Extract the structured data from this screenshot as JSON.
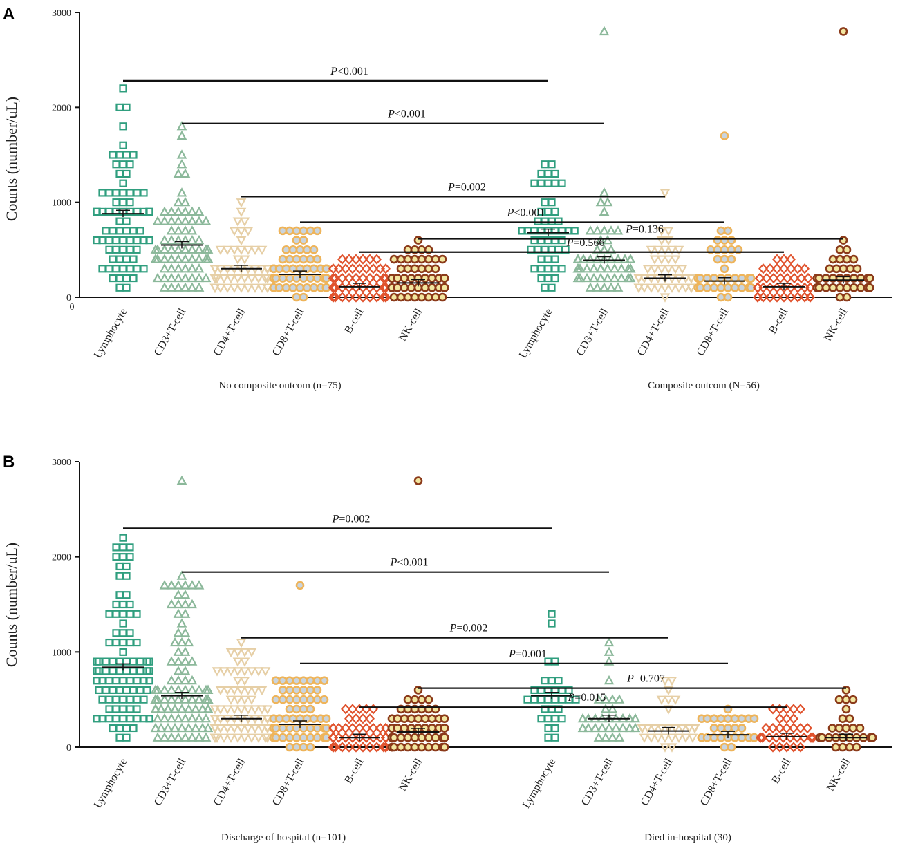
{
  "chart_data": [
    {
      "type": "scatter",
      "panel": "A",
      "ylabel": "Counts (number/uL)",
      "ylim": [
        0,
        3000
      ],
      "yticks": [
        0,
        1000,
        2000,
        3000
      ],
      "origin_label": "0",
      "groups": [
        "No composite outcom (n=75)",
        "Composite outcom (N=56)"
      ],
      "categories": [
        "Lymphocyte",
        "CD3+T-cell",
        "CD4+T-cell",
        "CD8+T-cell",
        "B-cell",
        "NK-cell",
        "Lymphocyte",
        "CD3+T-cell",
        "CD4+T-cell",
        "CD8+T-cell",
        "B-cell",
        "NK-cell"
      ],
      "medians": [
        880,
        550,
        300,
        240,
        110,
        150,
        680,
        390,
        200,
        170,
        110,
        180
      ],
      "ranges": [
        [
          100,
          2200
        ],
        [
          80,
          1780
        ],
        [
          50,
          1000
        ],
        [
          30,
          740
        ],
        [
          10,
          420
        ],
        [
          20,
          550
        ],
        [
          100,
          1400
        ],
        [
          100,
          1100
        ],
        [
          40,
          700
        ],
        [
          20,
          680
        ],
        [
          10,
          440
        ],
        [
          20,
          560
        ]
      ],
      "outliers": [
        [],
        [],
        [],
        [],
        [],
        [],
        [],
        [
          2800
        ],
        [
          1050
        ],
        [
          1700
        ],
        [],
        [
          2800
        ]
      ],
      "counts": [
        75,
        75,
        75,
        75,
        75,
        75,
        56,
        56,
        56,
        56,
        56,
        56
      ],
      "comparisons": [
        {
          "label": "P<0.001",
          "from": 0,
          "to": 6,
          "y": 2280
        },
        {
          "label": "P<0.001",
          "from": 1,
          "to": 7,
          "y": 1830
        },
        {
          "label": "P=0.002",
          "from": 2,
          "to": 8,
          "y": 1060
        },
        {
          "label": "P<0.001",
          "from": 3,
          "to": 9,
          "y": 790
        },
        {
          "label": "P=0.136",
          "from": 5,
          "to": 11,
          "y": 615
        },
        {
          "label": "P=0.566",
          "from": 4,
          "to": 10,
          "y": 475
        }
      ]
    },
    {
      "type": "scatter",
      "panel": "B",
      "ylabel": "Counts (number/uL)",
      "ylim": [
        0,
        3000
      ],
      "yticks": [
        0,
        1000,
        2000,
        3000
      ],
      "origin_label": "",
      "groups": [
        "Discharge of hospital (n=101)",
        "Died in-hospital (30)"
      ],
      "categories": [
        "Lymphocyte",
        "CD3+T-cell",
        "CD4+T-cell",
        "CD8+T-cell",
        "B-cell",
        "NK-cell",
        "Lymphocyte",
        "CD3+T-cell",
        "CD4+T-cell",
        "CD8+T-cell",
        "B-cell",
        "NK-cell"
      ],
      "medians": [
        840,
        540,
        300,
        240,
        100,
        160,
        540,
        300,
        170,
        130,
        110,
        100
      ],
      "ranges": [
        [
          100,
          2200
        ],
        [
          70,
          1780
        ],
        [
          50,
          1050
        ],
        [
          30,
          740
        ],
        [
          10,
          420
        ],
        [
          20,
          550
        ],
        [
          100,
          1400
        ],
        [
          100,
          1100
        ],
        [
          30,
          700
        ],
        [
          20,
          360
        ],
        [
          10,
          440
        ],
        [
          20,
          560
        ]
      ],
      "outliers": [
        [],
        [
          2800
        ],
        [],
        [
          1700
        ],
        [],
        [
          2800
        ],
        [],
        [],
        [],
        [],
        [],
        []
      ],
      "counts": [
        101,
        101,
        101,
        101,
        101,
        101,
        30,
        30,
        30,
        30,
        30,
        30
      ],
      "comparisons": [
        {
          "label": "P=0.002",
          "from": 0,
          "to": 6,
          "y": 2300
        },
        {
          "label": "P<0.001",
          "from": 1,
          "to": 7,
          "y": 1840
        },
        {
          "label": "P=0.002",
          "from": 2,
          "to": 8,
          "y": 1150
        },
        {
          "label": "P=0.001",
          "from": 3,
          "to": 9,
          "y": 880
        },
        {
          "label": "P=0.707",
          "from": 5,
          "to": 11,
          "y": 620
        },
        {
          "label": "P=0.015",
          "from": 4,
          "to": 10,
          "y": 420
        }
      ]
    }
  ],
  "styles": [
    {
      "name": "Lymphocyte",
      "marker": "square",
      "stroke": "#2f9e7e",
      "fill": "none"
    },
    {
      "name": "CD3+T-cell",
      "marker": "triangle-up",
      "stroke": "#8bb89a",
      "fill": "none"
    },
    {
      "name": "CD4+T-cell",
      "marker": "triangle-down",
      "stroke": "#e6cfa6",
      "fill": "none"
    },
    {
      "name": "CD8+T-cell",
      "marker": "circle",
      "stroke": "#eeb45a",
      "fill": "#c9d4de"
    },
    {
      "name": "B-cell",
      "marker": "diamond",
      "stroke": "#e0532e",
      "fill": "none"
    },
    {
      "name": "NK-cell",
      "marker": "circle",
      "stroke": "#8b3a1a",
      "fill": "#f2e6a0"
    }
  ]
}
